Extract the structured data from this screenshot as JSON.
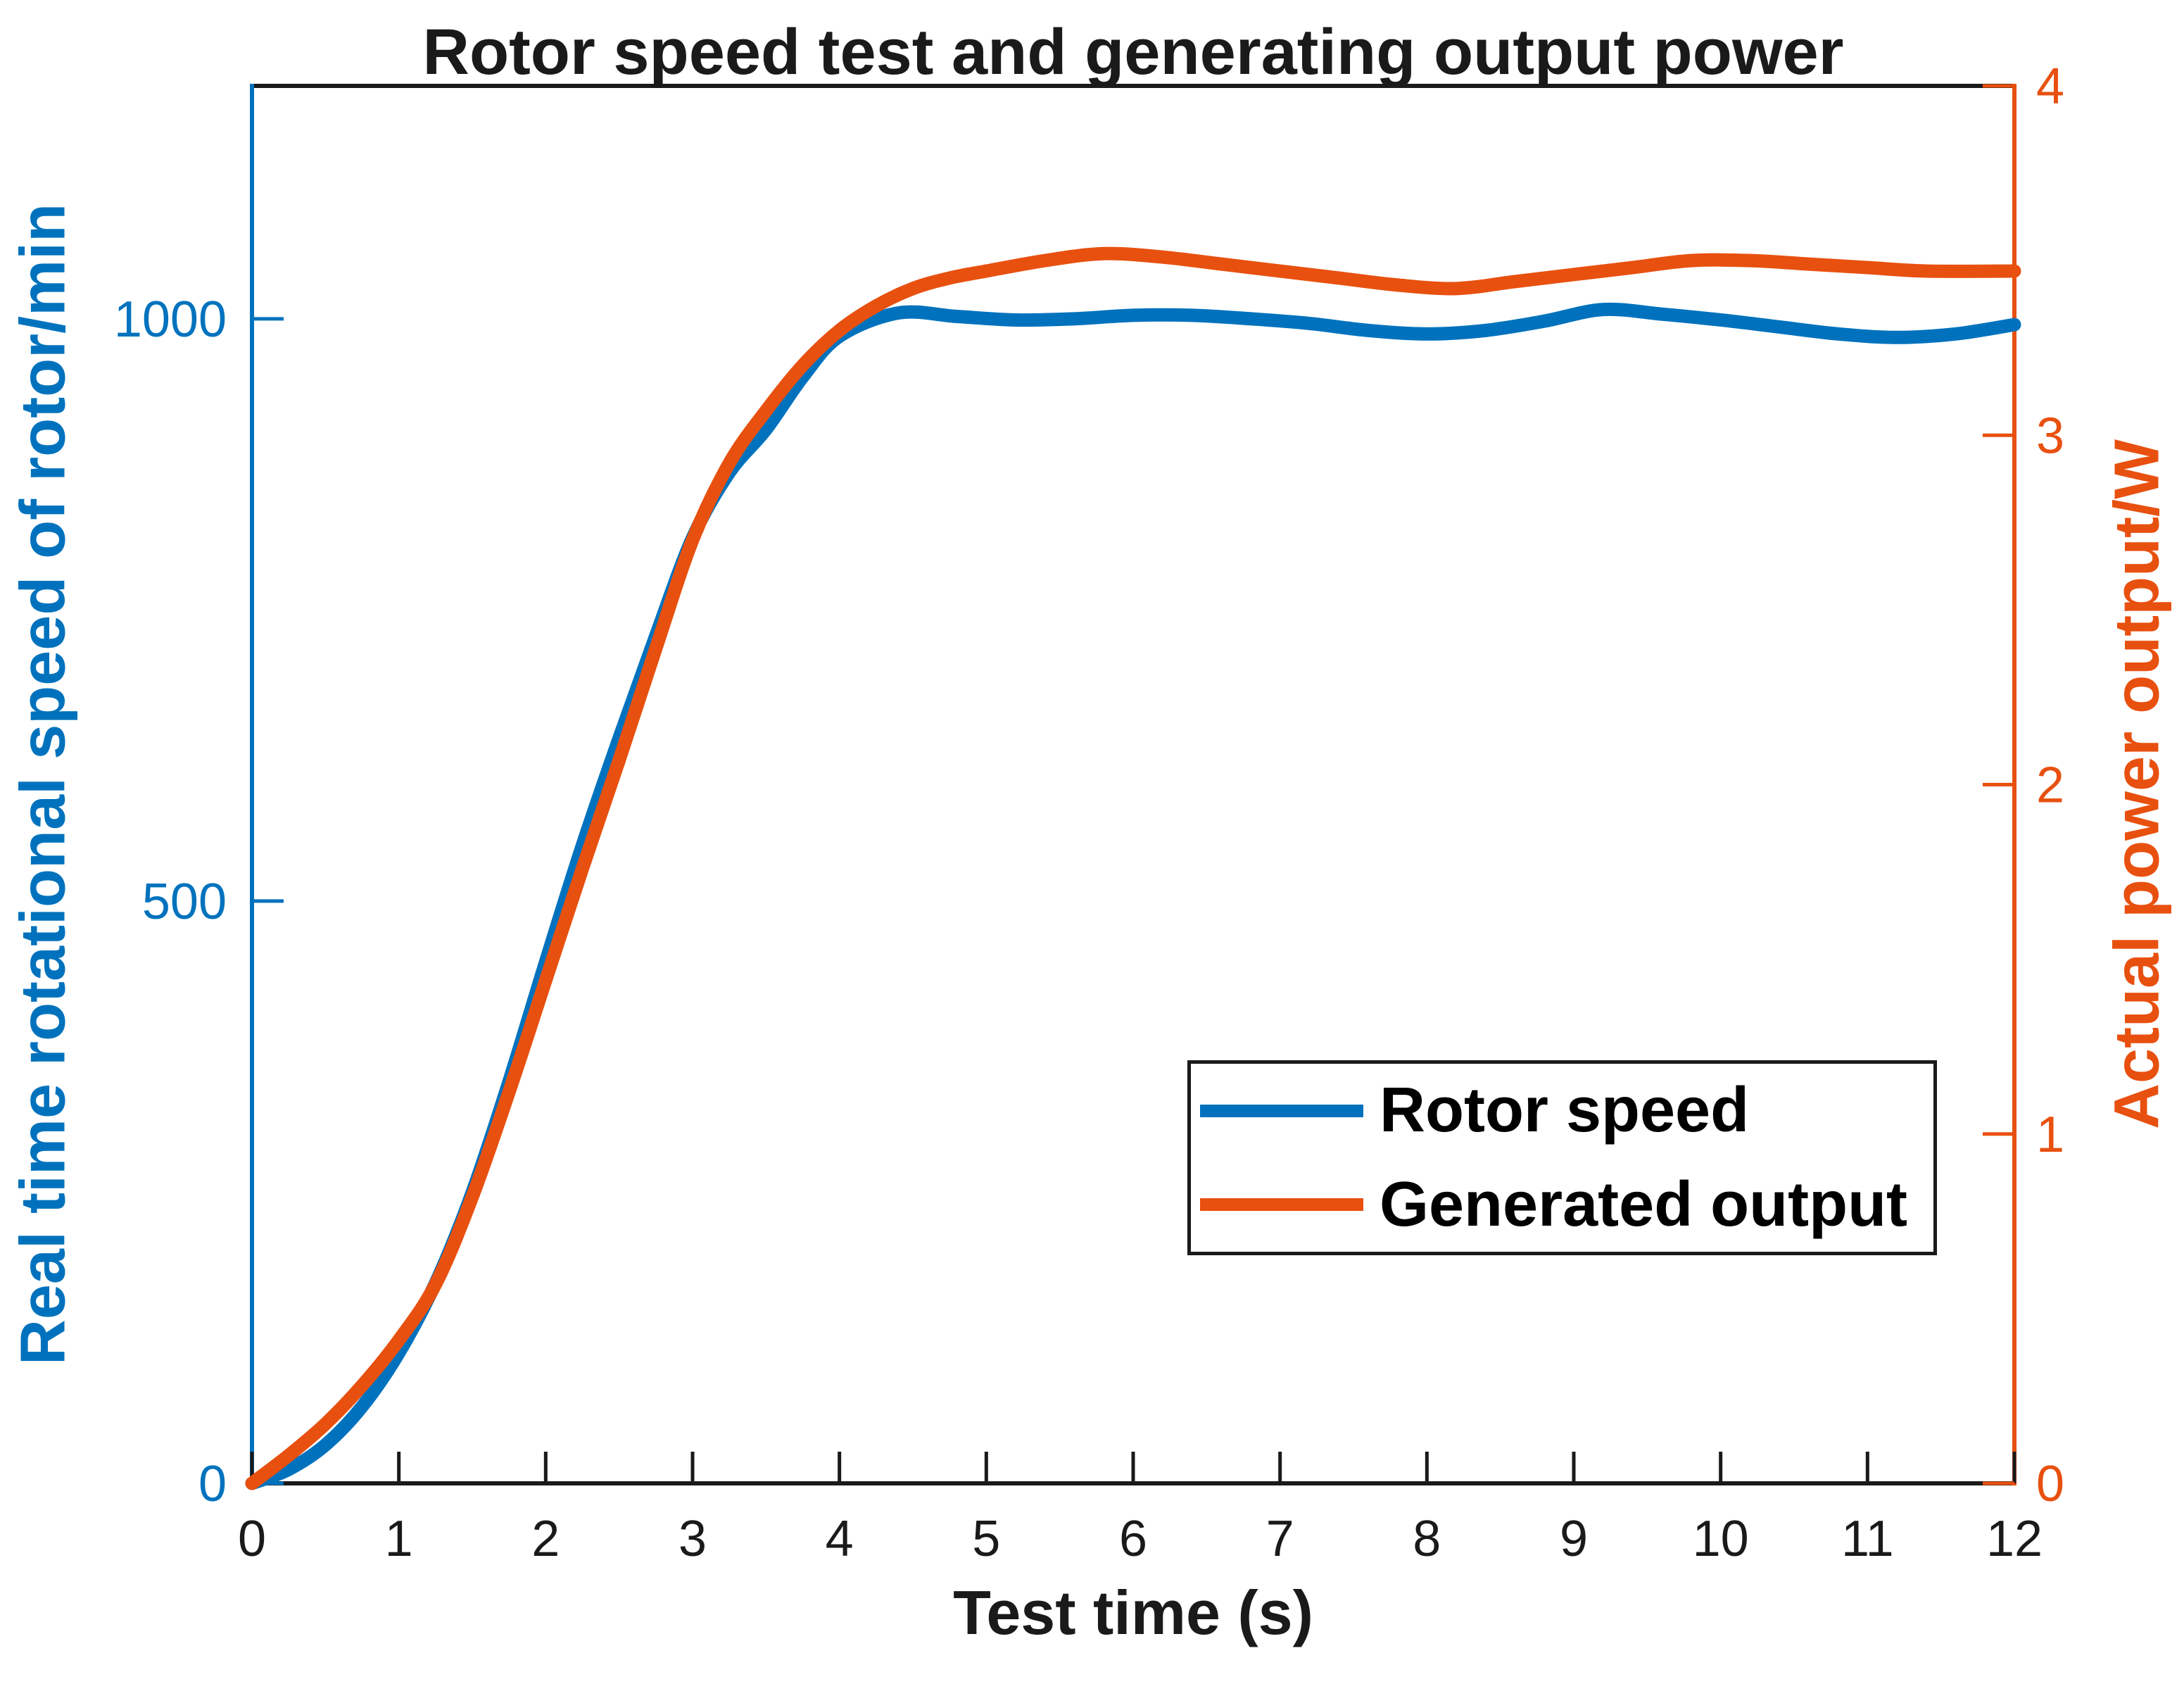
{
  "chart_data": {
    "type": "line",
    "title": "Rotor speed test and generating output power",
    "xlabel": "Test time (s)",
    "ylabel_left": "Real time rotational speed of rotor/min",
    "ylabel_right": "Actual power output/W",
    "xlim": [
      0,
      12
    ],
    "ylim_left": [
      0,
      1200
    ],
    "ylim_right": [
      0,
      4
    ],
    "x_ticks": [
      0,
      1,
      2,
      3,
      4,
      5,
      6,
      7,
      8,
      9,
      10,
      11,
      12
    ],
    "y_ticks_left": [
      0,
      500,
      1000
    ],
    "y_ticks_right": [
      0,
      1,
      2,
      3,
      4
    ],
    "grid": false,
    "legend_position": "inside right-center",
    "colors": {
      "left_axis": "#0072BD",
      "right_axis": "#E8500F",
      "box": "#1a1a1a",
      "text": "#1a1a1a"
    },
    "series": [
      {
        "name": "Rotor speed",
        "axis": "left",
        "units": "rotations/min",
        "color": "#0072BD",
        "points": [
          [
            0,
            0
          ],
          [
            0.25,
            12
          ],
          [
            0.5,
            33
          ],
          [
            0.75,
            66
          ],
          [
            1,
            112
          ],
          [
            1.25,
            172
          ],
          [
            1.5,
            250
          ],
          [
            1.75,
            345
          ],
          [
            2,
            448
          ],
          [
            2.25,
            548
          ],
          [
            2.5,
            640
          ],
          [
            2.75,
            728
          ],
          [
            3,
            812
          ],
          [
            3.25,
            868
          ],
          [
            3.5,
            905
          ],
          [
            3.75,
            950
          ],
          [
            4,
            985
          ],
          [
            4.4,
            1005
          ],
          [
            4.8,
            1002
          ],
          [
            5.2,
            999
          ],
          [
            5.6,
            1000
          ],
          [
            6,
            1003
          ],
          [
            6.4,
            1003
          ],
          [
            6.8,
            1000
          ],
          [
            7.2,
            996
          ],
          [
            7.6,
            990
          ],
          [
            8,
            987
          ],
          [
            8.4,
            990
          ],
          [
            8.8,
            998
          ],
          [
            9.2,
            1008
          ],
          [
            9.6,
            1004
          ],
          [
            10,
            999
          ],
          [
            10.4,
            993
          ],
          [
            10.8,
            987
          ],
          [
            11.2,
            984
          ],
          [
            11.6,
            987
          ],
          [
            12,
            995
          ]
        ]
      },
      {
        "name": "Generated output",
        "axis": "right",
        "units": "W",
        "color": "#E8500F",
        "points": [
          [
            0,
            0
          ],
          [
            0.25,
            0.08
          ],
          [
            0.5,
            0.17
          ],
          [
            0.75,
            0.28
          ],
          [
            1,
            0.41
          ],
          [
            1.25,
            0.57
          ],
          [
            1.5,
            0.82
          ],
          [
            1.75,
            1.12
          ],
          [
            2,
            1.44
          ],
          [
            2.25,
            1.76
          ],
          [
            2.5,
            2.07
          ],
          [
            2.75,
            2.39
          ],
          [
            3,
            2.7
          ],
          [
            3.25,
            2.92
          ],
          [
            3.5,
            3.07
          ],
          [
            3.75,
            3.2
          ],
          [
            4,
            3.3
          ],
          [
            4.25,
            3.37
          ],
          [
            4.5,
            3.42
          ],
          [
            4.75,
            3.45
          ],
          [
            5,
            3.47
          ],
          [
            5.4,
            3.5
          ],
          [
            5.8,
            3.52
          ],
          [
            6.2,
            3.51
          ],
          [
            6.6,
            3.49
          ],
          [
            7,
            3.47
          ],
          [
            7.4,
            3.45
          ],
          [
            7.8,
            3.43
          ],
          [
            8.2,
            3.42
          ],
          [
            8.6,
            3.44
          ],
          [
            9,
            3.46
          ],
          [
            9.4,
            3.48
          ],
          [
            9.8,
            3.5
          ],
          [
            10.2,
            3.5
          ],
          [
            10.6,
            3.49
          ],
          [
            11,
            3.48
          ],
          [
            11.4,
            3.47
          ],
          [
            12,
            3.47
          ]
        ]
      }
    ]
  }
}
